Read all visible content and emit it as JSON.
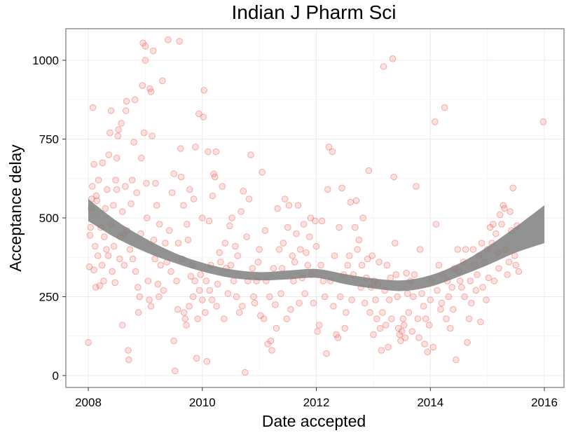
{
  "chart_data": {
    "type": "scatter",
    "title": "Indian J Pharm Sci",
    "xlabel": "Date accepted",
    "ylabel": "Acceptance delay",
    "x_unit": "year",
    "xlim": [
      2007.7,
      2016.4
    ],
    "ylim": [
      -30,
      1100
    ],
    "x_ticks": [
      2008,
      2010,
      2012,
      2014,
      2016
    ],
    "x_tick_labels": [
      "2008",
      "2010",
      "2012",
      "2014",
      "2016"
    ],
    "y_ticks": [
      0,
      250,
      500,
      750,
      1000
    ],
    "y_tick_labels": [
      "0",
      "250",
      "500",
      "750",
      "1000"
    ],
    "grid": true,
    "colors": {
      "points_fill": "#F8766D",
      "points_stroke": "#E8453B",
      "ribbon": "#7f7f7f",
      "grid_major": "#ececec",
      "grid_minor": "#f6f6f6",
      "panel_border": "#7f7f7f"
    },
    "smooth": {
      "x": [
        2008.0,
        2008.5,
        2009.0,
        2009.5,
        2010.0,
        2010.5,
        2011.0,
        2011.5,
        2012.0,
        2012.5,
        2013.0,
        2013.5,
        2014.0,
        2014.5,
        2015.0,
        2015.5,
        2016.0
      ],
      "upper": [
        560,
        490,
        435,
        390,
        358,
        337,
        328,
        333,
        338,
        322,
        308,
        302,
        318,
        355,
        408,
        472,
        540
      ],
      "lower": [
        490,
        435,
        392,
        358,
        330,
        310,
        302,
        305,
        310,
        290,
        276,
        268,
        282,
        314,
        350,
        390,
        420
      ]
    },
    "points": [
      [
        2008.0,
        105
      ],
      [
        2008.02,
        345
      ],
      [
        2008.03,
        445
      ],
      [
        2008.04,
        470
      ],
      [
        2008.05,
        530
      ],
      [
        2008.06,
        560
      ],
      [
        2008.07,
        600
      ],
      [
        2008.08,
        850
      ],
      [
        2008.1,
        670
      ],
      [
        2008.1,
        335
      ],
      [
        2008.12,
        410
      ],
      [
        2008.13,
        280
      ],
      [
        2008.14,
        570
      ],
      [
        2008.15,
        555
      ],
      [
        2008.17,
        380
      ],
      [
        2008.18,
        620
      ],
      [
        2008.2,
        285
      ],
      [
        2008.22,
        470
      ],
      [
        2008.24,
        350
      ],
      [
        2008.25,
        675
      ],
      [
        2008.27,
        300
      ],
      [
        2008.28,
        440
      ],
      [
        2008.3,
        530
      ],
      [
        2008.32,
        400
      ],
      [
        2008.33,
        590
      ],
      [
        2008.35,
        380
      ],
      [
        2008.36,
        700
      ],
      [
        2008.38,
        770
      ],
      [
        2008.4,
        840
      ],
      [
        2008.4,
        480
      ],
      [
        2008.42,
        330
      ],
      [
        2008.44,
        540
      ],
      [
        2008.45,
        410
      ],
      [
        2008.47,
        295
      ],
      [
        2008.48,
        620
      ],
      [
        2008.5,
        690
      ],
      [
        2008.5,
        590
      ],
      [
        2008.52,
        760
      ],
      [
        2008.53,
        780
      ],
      [
        2008.55,
        370
      ],
      [
        2008.56,
        440
      ],
      [
        2008.58,
        800
      ],
      [
        2008.6,
        520
      ],
      [
        2008.6,
        160
      ],
      [
        2008.62,
        450
      ],
      [
        2008.63,
        350
      ],
      [
        2008.65,
        600
      ],
      [
        2008.66,
        840
      ],
      [
        2008.67,
        870
      ],
      [
        2008.68,
        460
      ],
      [
        2008.7,
        80
      ],
      [
        2008.71,
        50
      ],
      [
        2008.73,
        400
      ],
      [
        2008.75,
        545
      ],
      [
        2008.77,
        620
      ],
      [
        2008.78,
        370
      ],
      [
        2008.8,
        740
      ],
      [
        2008.82,
        875
      ],
      [
        2008.83,
        330
      ],
      [
        2008.85,
        580
      ],
      [
        2008.87,
        280
      ],
      [
        2008.88,
        200
      ],
      [
        2008.9,
        250
      ],
      [
        2008.92,
        450
      ],
      [
        2008.93,
        690
      ],
      [
        2008.95,
        920
      ],
      [
        2008.96,
        1055
      ],
      [
        2008.98,
        770
      ],
      [
        2009.0,
        1000
      ],
      [
        2009.0,
        1045
      ],
      [
        2009.02,
        610
      ],
      [
        2009.03,
        500
      ],
      [
        2009.05,
        300
      ],
      [
        2009.07,
        240
      ],
      [
        2009.08,
        910
      ],
      [
        2009.1,
        900
      ],
      [
        2009.1,
        220
      ],
      [
        2009.12,
        760
      ],
      [
        2009.14,
        1030
      ],
      [
        2009.15,
        430
      ],
      [
        2009.17,
        370
      ],
      [
        2009.18,
        610
      ],
      [
        2009.2,
        540
      ],
      [
        2009.22,
        290
      ],
      [
        2009.24,
        250
      ],
      [
        2009.25,
        480
      ],
      [
        2009.27,
        350
      ],
      [
        2009.3,
        935
      ],
      [
        2009.32,
        270
      ],
      [
        2009.35,
        420
      ],
      [
        2009.38,
        360
      ],
      [
        2009.4,
        1065
      ],
      [
        2009.42,
        460
      ],
      [
        2009.45,
        330
      ],
      [
        2009.47,
        580
      ],
      [
        2009.5,
        640
      ],
      [
        2009.5,
        110
      ],
      [
        2009.52,
        15
      ],
      [
        2009.55,
        300
      ],
      [
        2009.57,
        210
      ],
      [
        2009.58,
        420
      ],
      [
        2009.6,
        1060
      ],
      [
        2009.62,
        720
      ],
      [
        2009.63,
        630
      ],
      [
        2009.65,
        370
      ],
      [
        2009.67,
        540
      ],
      [
        2009.68,
        200
      ],
      [
        2009.7,
        180
      ],
      [
        2009.72,
        160
      ],
      [
        2009.73,
        480
      ],
      [
        2009.75,
        430
      ],
      [
        2009.77,
        220
      ],
      [
        2009.78,
        590
      ],
      [
        2009.8,
        315
      ],
      [
        2009.82,
        350
      ],
      [
        2009.84,
        250
      ],
      [
        2009.85,
        560
      ],
      [
        2009.87,
        300
      ],
      [
        2009.88,
        725
      ],
      [
        2009.9,
        55
      ],
      [
        2009.92,
        180
      ],
      [
        2009.94,
        830
      ],
      [
        2009.95,
        270
      ],
      [
        2009.97,
        320
      ],
      [
        2010.0,
        500
      ],
      [
        2010.0,
        240
      ],
      [
        2010.02,
        820
      ],
      [
        2010.03,
        905
      ],
      [
        2010.05,
        200
      ],
      [
        2010.07,
        300
      ],
      [
        2010.08,
        45
      ],
      [
        2010.1,
        710
      ],
      [
        2010.12,
        490
      ],
      [
        2010.13,
        270
      ],
      [
        2010.15,
        350
      ],
      [
        2010.17,
        240
      ],
      [
        2010.18,
        570
      ],
      [
        2010.2,
        640
      ],
      [
        2010.22,
        630
      ],
      [
        2010.24,
        710
      ],
      [
        2010.25,
        220
      ],
      [
        2010.27,
        290
      ],
      [
        2010.3,
        390
      ],
      [
        2010.32,
        360
      ],
      [
        2010.35,
        600
      ],
      [
        2010.38,
        180
      ],
      [
        2010.4,
        420
      ],
      [
        2010.42,
        340
      ],
      [
        2010.45,
        260
      ],
      [
        2010.48,
        475
      ],
      [
        2010.5,
        350
      ],
      [
        2010.52,
        500
      ],
      [
        2010.55,
        300
      ],
      [
        2010.58,
        410
      ],
      [
        2010.6,
        250
      ],
      [
        2010.62,
        380
      ],
      [
        2010.65,
        200
      ],
      [
        2010.68,
        520
      ],
      [
        2010.7,
        220
      ],
      [
        2010.72,
        585
      ],
      [
        2010.75,
        10
      ],
      [
        2010.78,
        440
      ],
      [
        2010.8,
        300
      ],
      [
        2010.82,
        560
      ],
      [
        2010.85,
        700
      ],
      [
        2010.88,
        340
      ],
      [
        2010.9,
        250
      ],
      [
        2010.92,
        230
      ],
      [
        2010.95,
        300
      ],
      [
        2010.98,
        360
      ],
      [
        2011.0,
        400
      ],
      [
        2011.02,
        190
      ],
      [
        2011.05,
        645
      ],
      [
        2011.08,
        180
      ],
      [
        2011.1,
        460
      ],
      [
        2011.12,
        300
      ],
      [
        2011.15,
        100
      ],
      [
        2011.18,
        250
      ],
      [
        2011.2,
        110
      ],
      [
        2011.22,
        80
      ],
      [
        2011.25,
        340
      ],
      [
        2011.28,
        225
      ],
      [
        2011.3,
        150
      ],
      [
        2011.32,
        530
      ],
      [
        2011.35,
        400
      ],
      [
        2011.38,
        260
      ],
      [
        2011.4,
        340
      ],
      [
        2011.42,
        420
      ],
      [
        2011.45,
        560
      ],
      [
        2011.48,
        180
      ],
      [
        2011.5,
        470
      ],
      [
        2011.52,
        540
      ],
      [
        2011.55,
        210
      ],
      [
        2011.58,
        380
      ],
      [
        2011.6,
        300
      ],
      [
        2011.62,
        360
      ],
      [
        2011.65,
        450
      ],
      [
        2011.68,
        540
      ],
      [
        2011.7,
        230
      ],
      [
        2011.72,
        400
      ],
      [
        2011.75,
        310
      ],
      [
        2011.78,
        480
      ],
      [
        2011.8,
        260
      ],
      [
        2011.82,
        390
      ],
      [
        2011.85,
        350
      ],
      [
        2011.88,
        440
      ],
      [
        2011.9,
        500
      ],
      [
        2011.92,
        320
      ],
      [
        2011.95,
        230
      ],
      [
        2011.98,
        490
      ],
      [
        2012.0,
        410
      ],
      [
        2012.02,
        140
      ],
      [
        2012.05,
        160
      ],
      [
        2012.08,
        350
      ],
      [
        2012.1,
        490
      ],
      [
        2012.12,
        300
      ],
      [
        2012.15,
        250
      ],
      [
        2012.18,
        70
      ],
      [
        2012.2,
        590
      ],
      [
        2012.22,
        725
      ],
      [
        2012.25,
        300
      ],
      [
        2012.28,
        710
      ],
      [
        2012.3,
        220
      ],
      [
        2012.32,
        380
      ],
      [
        2012.35,
        130
      ],
      [
        2012.38,
        120
      ],
      [
        2012.4,
        470
      ],
      [
        2012.42,
        250
      ],
      [
        2012.45,
        595
      ],
      [
        2012.48,
        320
      ],
      [
        2012.5,
        150
      ],
      [
        2012.52,
        200
      ],
      [
        2012.55,
        350
      ],
      [
        2012.58,
        380
      ],
      [
        2012.6,
        550
      ],
      [
        2012.62,
        240
      ],
      [
        2012.65,
        320
      ],
      [
        2012.68,
        470
      ],
      [
        2012.7,
        555
      ],
      [
        2012.72,
        400
      ],
      [
        2012.75,
        430
      ],
      [
        2012.78,
        280
      ],
      [
        2012.8,
        350
      ],
      [
        2012.82,
        500
      ],
      [
        2012.85,
        230
      ],
      [
        2012.88,
        310
      ],
      [
        2012.9,
        370
      ],
      [
        2012.92,
        650
      ],
      [
        2012.94,
        200
      ],
      [
        2012.96,
        280
      ],
      [
        2012.98,
        380
      ],
      [
        2013.0,
        130
      ],
      [
        2013.02,
        300
      ],
      [
        2013.04,
        240
      ],
      [
        2013.06,
        180
      ],
      [
        2013.08,
        290
      ],
      [
        2013.1,
        360
      ],
      [
        2013.12,
        150
      ],
      [
        2013.14,
        80
      ],
      [
        2013.16,
        200
      ],
      [
        2013.18,
        980
      ],
      [
        2013.2,
        270
      ],
      [
        2013.22,
        160
      ],
      [
        2013.24,
        350
      ],
      [
        2013.26,
        90
      ],
      [
        2013.28,
        240
      ],
      [
        2013.3,
        310
      ],
      [
        2013.32,
        180
      ],
      [
        2013.34,
        1005
      ],
      [
        2013.36,
        630
      ],
      [
        2013.38,
        420
      ],
      [
        2013.4,
        320
      ],
      [
        2013.42,
        250
      ],
      [
        2013.44,
        150
      ],
      [
        2013.46,
        130
      ],
      [
        2013.48,
        110
      ],
      [
        2013.5,
        140
      ],
      [
        2013.52,
        180
      ],
      [
        2013.54,
        160
      ],
      [
        2013.56,
        120
      ],
      [
        2013.58,
        325
      ],
      [
        2013.6,
        260
      ],
      [
        2013.62,
        200
      ],
      [
        2013.65,
        300
      ],
      [
        2013.68,
        140
      ],
      [
        2013.7,
        250
      ],
      [
        2013.72,
        320
      ],
      [
        2013.75,
        600
      ],
      [
        2013.78,
        180
      ],
      [
        2013.8,
        120
      ],
      [
        2013.82,
        400
      ],
      [
        2013.85,
        260
      ],
      [
        2013.88,
        220
      ],
      [
        2013.9,
        100
      ],
      [
        2013.92,
        180
      ],
      [
        2013.95,
        75
      ],
      [
        2013.98,
        160
      ],
      [
        2014.0,
        240
      ],
      [
        2014.02,
        300
      ],
      [
        2014.05,
        90
      ],
      [
        2014.08,
        805
      ],
      [
        2014.1,
        480
      ],
      [
        2014.12,
        270
      ],
      [
        2014.15,
        350
      ],
      [
        2014.18,
        210
      ],
      [
        2014.2,
        230
      ],
      [
        2014.22,
        320
      ],
      [
        2014.25,
        850
      ],
      [
        2014.28,
        180
      ],
      [
        2014.3,
        300
      ],
      [
        2014.32,
        250
      ],
      [
        2014.35,
        150
      ],
      [
        2014.38,
        280
      ],
      [
        2014.4,
        210
      ],
      [
        2014.42,
        340
      ],
      [
        2014.45,
        50
      ],
      [
        2014.48,
        400
      ],
      [
        2014.5,
        330
      ],
      [
        2014.52,
        300
      ],
      [
        2014.55,
        280
      ],
      [
        2014.58,
        360
      ],
      [
        2014.6,
        250
      ],
      [
        2014.62,
        400
      ],
      [
        2014.65,
        105
      ],
      [
        2014.68,
        180
      ],
      [
        2014.7,
        300
      ],
      [
        2014.72,
        230
      ],
      [
        2014.75,
        400
      ],
      [
        2014.78,
        350
      ],
      [
        2014.8,
        270
      ],
      [
        2014.82,
        320
      ],
      [
        2014.85,
        380
      ],
      [
        2014.88,
        170
      ],
      [
        2014.9,
        420
      ],
      [
        2014.92,
        280
      ],
      [
        2014.95,
        360
      ],
      [
        2014.98,
        240
      ],
      [
        2015.0,
        400
      ],
      [
        2015.02,
        310
      ],
      [
        2015.05,
        470
      ],
      [
        2015.08,
        420
      ],
      [
        2015.1,
        480
      ],
      [
        2015.12,
        300
      ],
      [
        2015.15,
        450
      ],
      [
        2015.18,
        390
      ],
      [
        2015.2,
        340
      ],
      [
        2015.22,
        510
      ],
      [
        2015.25,
        480
      ],
      [
        2015.28,
        540
      ],
      [
        2015.3,
        530
      ],
      [
        2015.32,
        400
      ],
      [
        2015.35,
        320
      ],
      [
        2015.38,
        360
      ],
      [
        2015.4,
        520
      ],
      [
        2015.42,
        460
      ],
      [
        2015.45,
        595
      ],
      [
        2015.48,
        380
      ],
      [
        2015.5,
        350
      ],
      [
        2015.52,
        475
      ],
      [
        2015.55,
        330
      ],
      [
        2015.98,
        805
      ]
    ]
  }
}
